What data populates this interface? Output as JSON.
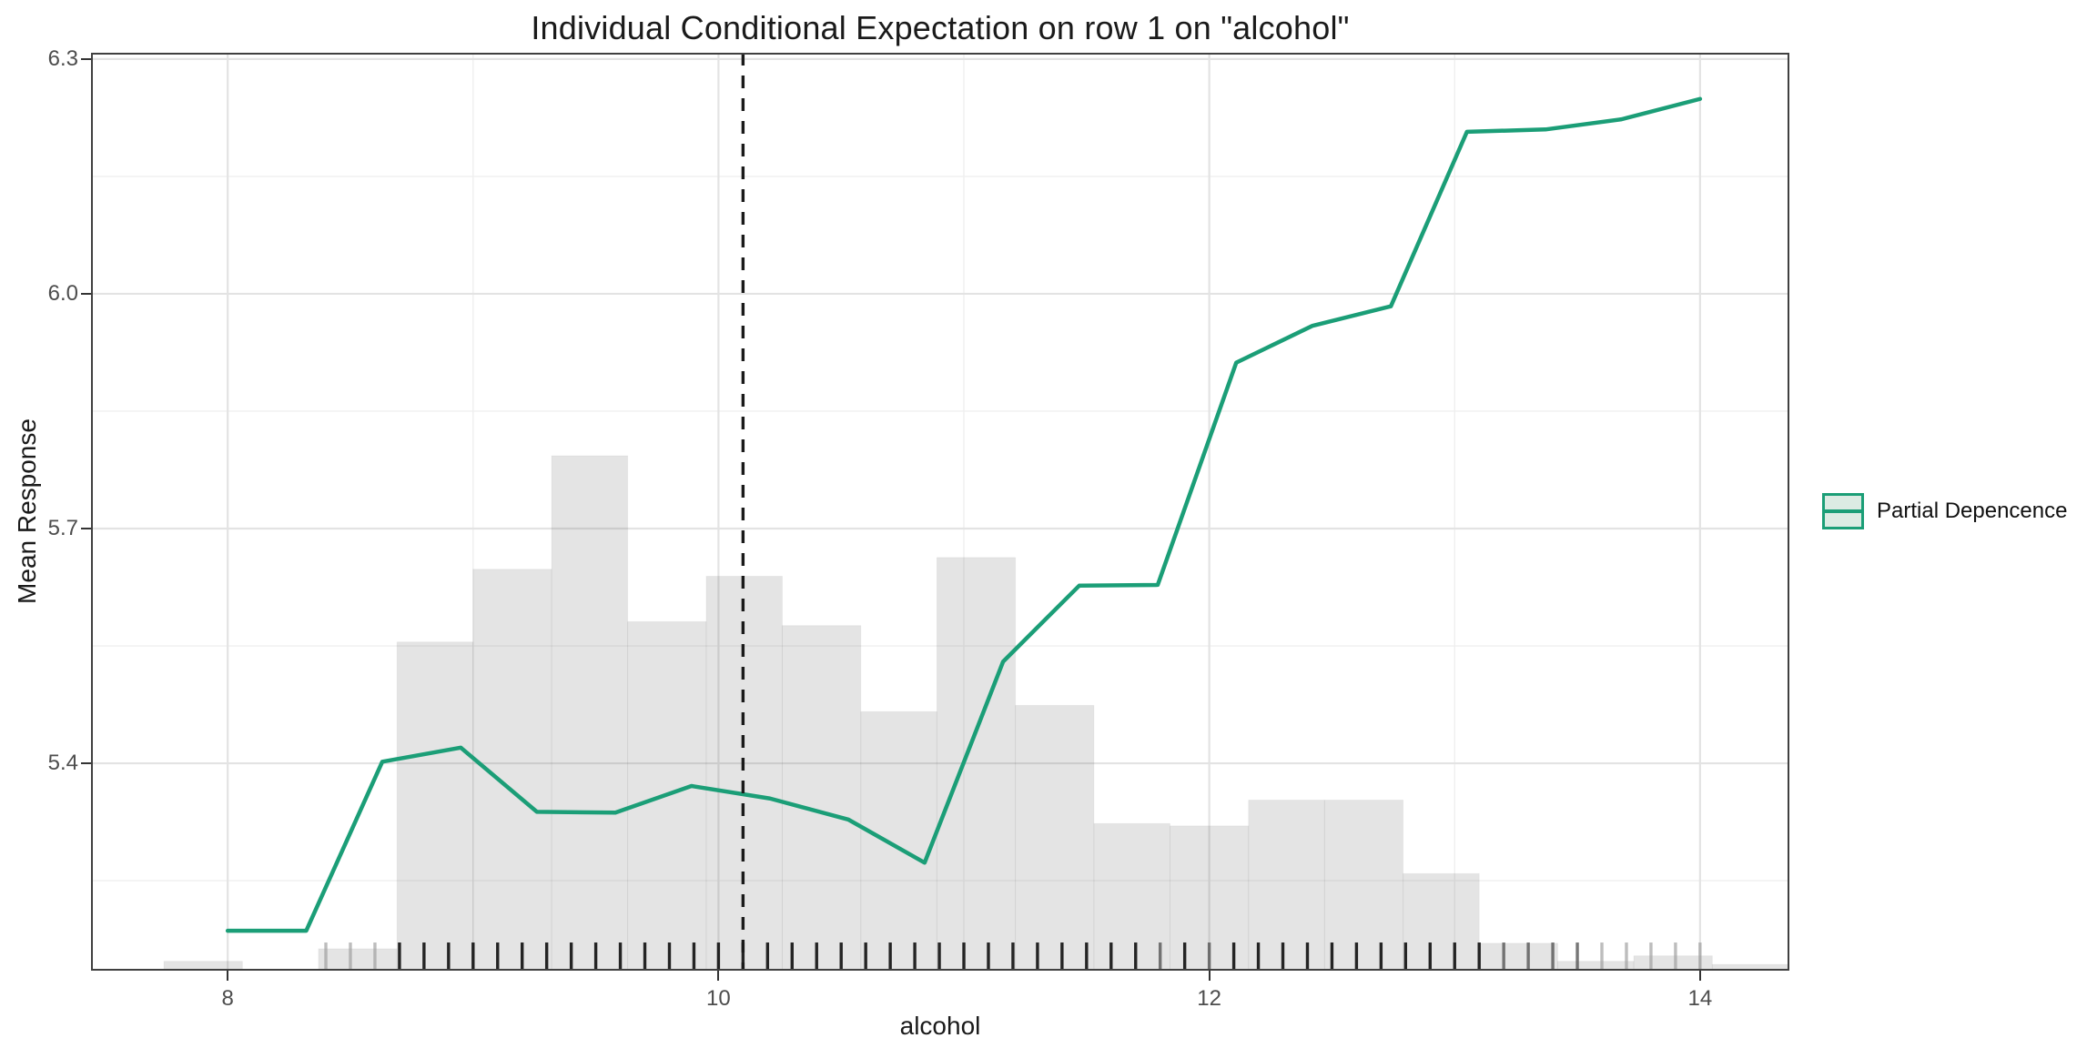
{
  "title": "Individual Conditional Expectation on row 1 on \"alcohol\"",
  "axes": {
    "x": {
      "label": "alcohol",
      "tick_labels": [
        "8",
        "10",
        "12",
        "14"
      ],
      "tick_values": [
        8,
        10,
        12,
        14
      ],
      "minor_gridlines": [
        9,
        11,
        13
      ],
      "range": [
        7.443,
        14.364
      ]
    },
    "y": {
      "label": "Mean Response",
      "tick_labels": [
        "5.4",
        "5.7",
        "6.0",
        "6.3"
      ],
      "tick_values": [
        5.4,
        5.7,
        6.0,
        6.3
      ],
      "minor_gridlines": [
        5.25,
        5.55,
        5.85,
        6.15
      ],
      "range": [
        5.135,
        6.308
      ]
    }
  },
  "legend": {
    "label": "Partial Depencence",
    "position": "right"
  },
  "colors": {
    "pdp_line": "#1b9e77",
    "legend_key_fill": "#dcebe3",
    "histogram_fill": "rgba(70,70,70,0.145)",
    "histogram_stroke": "rgba(0,0,0,0.04)",
    "gridline_major": "#e3e3e3",
    "gridline_minor": "#efefef",
    "reference_line": "#1a1a1a",
    "panel_border": "#404040",
    "rug_dark": "#141414",
    "rug_mid": "#555555",
    "rug_light": "#9a9a9a"
  },
  "chart_data": {
    "type": "line",
    "title": "Individual Conditional Expectation on row 1 on \"alcohol\"",
    "xlabel": "alcohol",
    "ylabel": "Mean Response",
    "xlim": [
      7.443,
      14.364
    ],
    "ylim": [
      5.135,
      6.308
    ],
    "grid": "on",
    "legend_position": "right",
    "series": [
      {
        "name": "Partial Depencence",
        "type": "line",
        "color": "#1b9e77",
        "x": [
          8.0,
          8.32,
          8.63,
          8.95,
          9.26,
          9.58,
          9.89,
          10.21,
          10.53,
          10.84,
          11.16,
          11.47,
          11.79,
          12.11,
          12.42,
          12.74,
          13.05,
          13.37,
          13.68,
          14.0
        ],
        "y": [
          5.186,
          5.186,
          5.402,
          5.42,
          5.338,
          5.337,
          5.371,
          5.355,
          5.328,
          5.273,
          5.53,
          5.627,
          5.628,
          5.912,
          5.959,
          5.984,
          6.207,
          6.21,
          6.223,
          6.249
        ]
      }
    ],
    "background_histogram": {
      "bin_edges": [
        7.74,
        8.06,
        8.37,
        8.69,
        9.0,
        9.32,
        9.63,
        9.95,
        10.26,
        10.58,
        10.89,
        11.21,
        11.53,
        11.84,
        12.16,
        12.47,
        12.79,
        13.1,
        13.42,
        13.73,
        14.05,
        14.36
      ],
      "tops": [
        5.147,
        null,
        5.163,
        5.555,
        5.648,
        5.793,
        5.581,
        5.639,
        5.576,
        5.466,
        5.663,
        5.474,
        5.323,
        5.32,
        5.353,
        5.353,
        5.259,
        5.17,
        5.147,
        5.154,
        5.143
      ],
      "baseline": 5.135
    },
    "reference_line": {
      "x": 10.1,
      "style": "dashed",
      "orientation": "vertical"
    },
    "rug": {
      "start": 8.4,
      "step": 0.1,
      "count": 57,
      "y_top": 5.171,
      "y_bottom": 5.135,
      "shades": "llldddddddddddddddddddddddddddddddmdmdddddddddddmmmmllllll"
    }
  }
}
